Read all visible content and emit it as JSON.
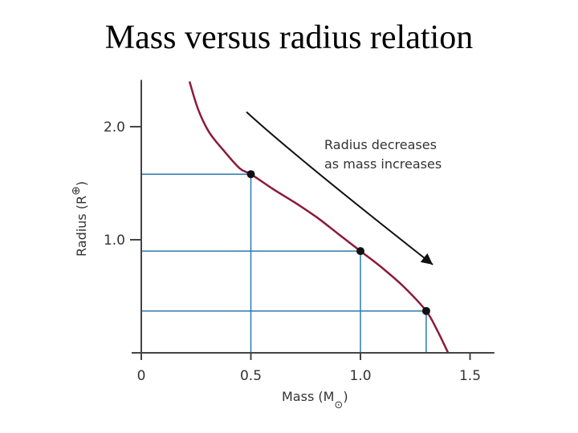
{
  "title": "Mass versus radius relation",
  "chart_data": {
    "type": "line",
    "xlabel": "Mass (M",
    "xlabel_symbol": "⊙",
    "xlabel_close": ")",
    "ylabel": "Radius (R",
    "ylabel_symbol": "⊕",
    "ylabel_close": ")",
    "xlim": [
      0,
      1.6
    ],
    "ylim": [
      0,
      2.4
    ],
    "x_ticks": [
      {
        "value": 0,
        "label": "0"
      },
      {
        "value": 0.5,
        "label": "0.5"
      },
      {
        "value": 1.0,
        "label": "1.0"
      },
      {
        "value": 1.5,
        "label": "1.5"
      }
    ],
    "y_ticks": [
      {
        "value": 1.0,
        "label": "1.0"
      },
      {
        "value": 2.0,
        "label": "2.0"
      }
    ],
    "series": [
      {
        "color": "#8b1a3a",
        "x": [
          0.22,
          0.26,
          0.31,
          0.38,
          0.45,
          0.5,
          0.6,
          0.7,
          0.8,
          0.9,
          1.0,
          1.1,
          1.2,
          1.3,
          1.35,
          1.4
        ],
        "y": [
          2.4,
          2.15,
          1.95,
          1.78,
          1.63,
          1.58,
          1.45,
          1.33,
          1.2,
          1.05,
          0.9,
          0.75,
          0.58,
          0.37,
          0.2,
          0.0
        ]
      }
    ],
    "highlighted_points": [
      {
        "x": 0.5,
        "y": 1.58
      },
      {
        "x": 1.0,
        "y": 0.9
      },
      {
        "x": 1.3,
        "y": 0.37
      }
    ],
    "guide_color": "#2a7ab0",
    "annotation": {
      "lines": [
        "Radius decreases",
        "as mass increases"
      ],
      "arrow_from": {
        "x": 0.48,
        "y": 2.13
      },
      "arrow_to": {
        "x": 1.33,
        "y": 0.78
      }
    }
  }
}
